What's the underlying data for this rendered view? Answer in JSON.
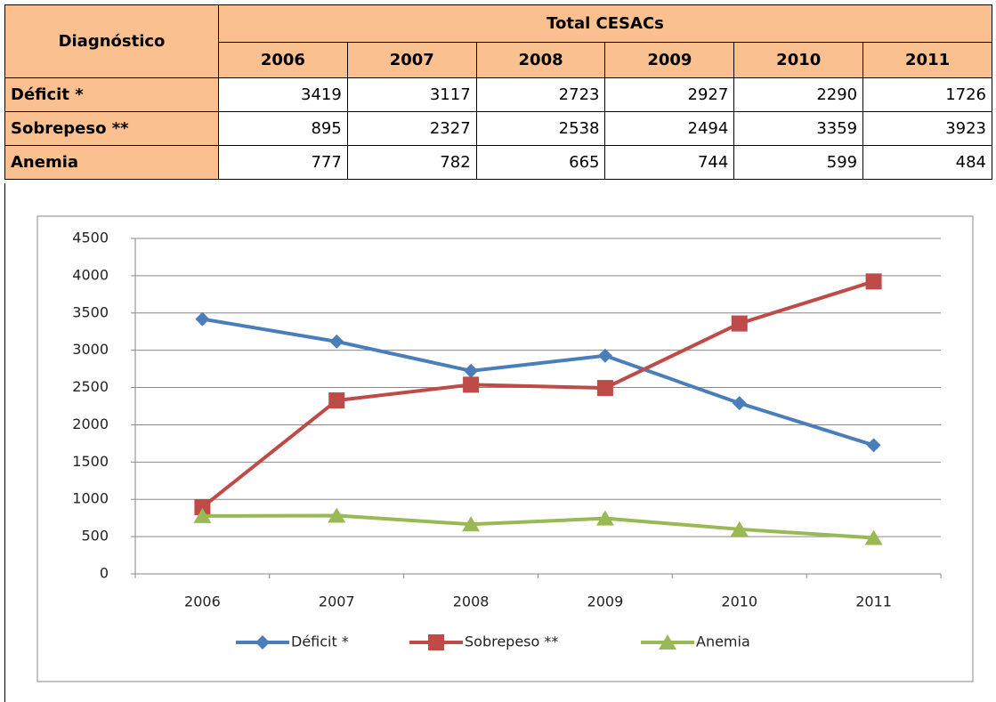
{
  "table": {
    "header": {
      "label": "Diagnóstico",
      "group": "Total CESACs",
      "years": [
        "2006",
        "2007",
        "2008",
        "2009",
        "2010",
        "2011"
      ]
    },
    "rows": [
      {
        "label": "Déficit *",
        "values": [
          3419,
          3117,
          2723,
          2927,
          2290,
          1726
        ]
      },
      {
        "label": "Sobrepeso **",
        "values": [
          895,
          2327,
          2538,
          2494,
          3359,
          3923
        ]
      },
      {
        "label": "Anemia",
        "values": [
          777,
          782,
          665,
          744,
          599,
          484
        ]
      }
    ]
  },
  "chart_data": {
    "type": "line",
    "categories": [
      "2006",
      "2007",
      "2008",
      "2009",
      "2010",
      "2011"
    ],
    "series": [
      {
        "name": "Déficit *",
        "color": "#4a7ebb",
        "marker": "diamond",
        "values": [
          3419,
          3117,
          2723,
          2927,
          2290,
          1726
        ]
      },
      {
        "name": "Sobrepeso **",
        "color": "#be4b48",
        "marker": "square",
        "values": [
          895,
          2327,
          2538,
          2494,
          3359,
          3923
        ]
      },
      {
        "name": "Anemia",
        "color": "#98b954",
        "marker": "triangle",
        "values": [
          777,
          782,
          665,
          744,
          599,
          484
        ]
      }
    ],
    "ylim": [
      0,
      4500
    ],
    "yticks": [
      0,
      500,
      1000,
      1500,
      2000,
      2500,
      3000,
      3500,
      4000,
      4500
    ],
    "grid": true,
    "legend": "bottom"
  }
}
